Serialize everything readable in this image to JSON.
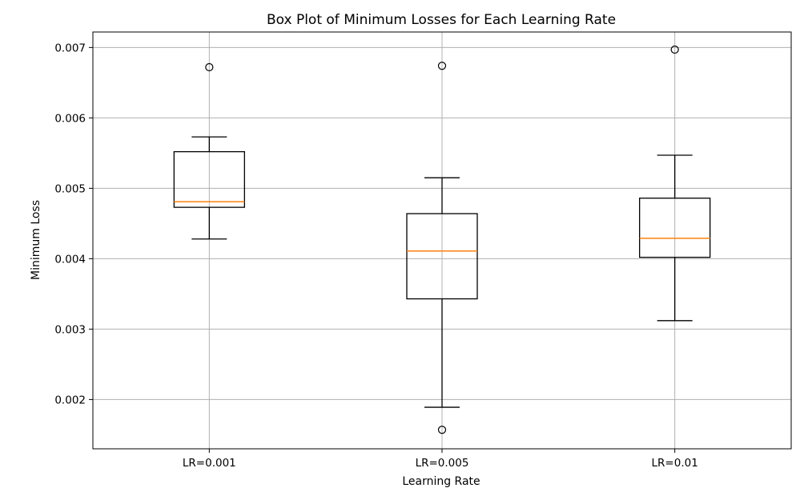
{
  "chart_data": {
    "type": "box",
    "title": "Box Plot of Minimum Losses for Each Learning Rate",
    "xlabel": "Learning Rate",
    "ylabel": "Minimum Loss",
    "ylim": [
      0.0013,
      0.00722
    ],
    "yticks": [
      0.002,
      0.003,
      0.004,
      0.005,
      0.006,
      0.007
    ],
    "ytick_labels": [
      "0.002",
      "0.003",
      "0.004",
      "0.005",
      "0.006",
      "0.007"
    ],
    "grid": true,
    "categories": [
      "LR=0.001",
      "LR=0.005",
      "LR=0.01"
    ],
    "boxes": [
      {
        "category": "LR=0.001",
        "whisker_low": 0.00428,
        "q1": 0.00473,
        "median": 0.00481,
        "q3": 0.00552,
        "whisker_high": 0.00573,
        "outliers": [
          0.00672
        ]
      },
      {
        "category": "LR=0.005",
        "whisker_low": 0.00189,
        "q1": 0.00343,
        "median": 0.00411,
        "q3": 0.00464,
        "whisker_high": 0.00515,
        "outliers": [
          0.00674,
          0.00157
        ]
      },
      {
        "category": "LR=0.01",
        "whisker_low": 0.00312,
        "q1": 0.00402,
        "median": 0.00429,
        "q3": 0.00486,
        "whisker_high": 0.00547,
        "outliers": [
          0.00697
        ]
      }
    ],
    "colors": {
      "box": "#000000",
      "median": "#ff7f0e",
      "grid": "#b0b0b0"
    }
  }
}
